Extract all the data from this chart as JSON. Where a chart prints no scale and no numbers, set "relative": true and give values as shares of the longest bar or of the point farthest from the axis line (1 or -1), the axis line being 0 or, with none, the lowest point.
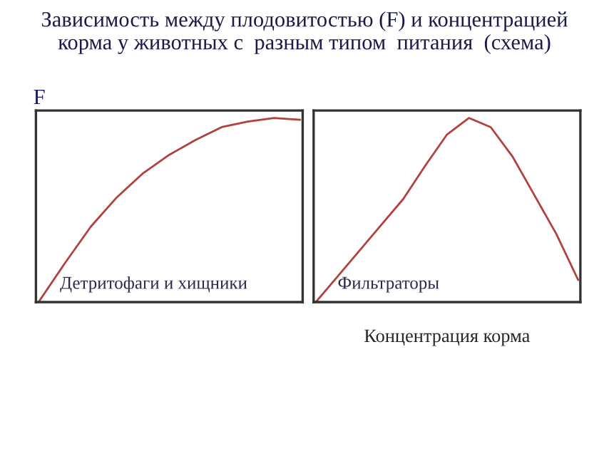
{
  "chart_data": [
    {
      "type": "line",
      "title": "Зависимость между плодовитостью (F) и концентрацией\nкорма у животных с  разным типом  питания  (схема)",
      "ylabel": "F",
      "relative": true,
      "grid": false,
      "legend": false,
      "categories": [
        null,
        null,
        null,
        null,
        null,
        null,
        null,
        null,
        null,
        null,
        null
      ],
      "series": [
        {
          "color": "#b0413e",
          "values": [
            0,
            0.21,
            0.41,
            0.57,
            0.7,
            0.8,
            0.88,
            0.95,
            0.98,
            1.0,
            0.99
          ]
        }
      ],
      "annotations": [
        "Детритофаги и хищники"
      ]
    },
    {
      "type": "line",
      "xlabel": "Концентрация корма",
      "relative": true,
      "grid": false,
      "legend": false,
      "categories": [
        null,
        null,
        null,
        null,
        null,
        null,
        null,
        null,
        null,
        null,
        null,
        null,
        null
      ],
      "series": [
        {
          "color": "#b0413e",
          "values": [
            0,
            0.14,
            0.28,
            0.42,
            0.56,
            0.74,
            0.91,
            1.0,
            0.95,
            0.79,
            0.58,
            0.37,
            0.12
          ]
        }
      ],
      "annotations": [
        "Фильтраторы"
      ]
    }
  ]
}
